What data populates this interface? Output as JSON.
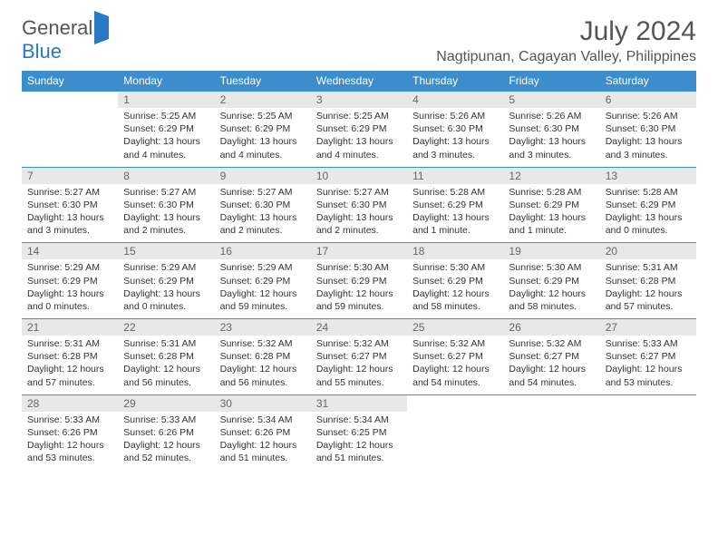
{
  "logo": {
    "word1": "General",
    "word2": "Blue"
  },
  "header": {
    "title": "July 2024",
    "subtitle": "Nagtipunan, Cagayan Valley, Philippines"
  },
  "colors": {
    "brand_blue": "#3c8dcc",
    "logo_blue": "#2878c8",
    "daynum_bg": "#e8e8e8",
    "text_gray": "#555"
  },
  "dayNames": [
    "Sunday",
    "Monday",
    "Tuesday",
    "Wednesday",
    "Thursday",
    "Friday",
    "Saturday"
  ],
  "firstWeekday": 1,
  "daysInMonth": 31,
  "days": {
    "1": {
      "sunrise": "5:25 AM",
      "sunset": "6:29 PM",
      "daylight": "13 hours and 4 minutes."
    },
    "2": {
      "sunrise": "5:25 AM",
      "sunset": "6:29 PM",
      "daylight": "13 hours and 4 minutes."
    },
    "3": {
      "sunrise": "5:25 AM",
      "sunset": "6:29 PM",
      "daylight": "13 hours and 4 minutes."
    },
    "4": {
      "sunrise": "5:26 AM",
      "sunset": "6:30 PM",
      "daylight": "13 hours and 3 minutes."
    },
    "5": {
      "sunrise": "5:26 AM",
      "sunset": "6:30 PM",
      "daylight": "13 hours and 3 minutes."
    },
    "6": {
      "sunrise": "5:26 AM",
      "sunset": "6:30 PM",
      "daylight": "13 hours and 3 minutes."
    },
    "7": {
      "sunrise": "5:27 AM",
      "sunset": "6:30 PM",
      "daylight": "13 hours and 3 minutes."
    },
    "8": {
      "sunrise": "5:27 AM",
      "sunset": "6:30 PM",
      "daylight": "13 hours and 2 minutes."
    },
    "9": {
      "sunrise": "5:27 AM",
      "sunset": "6:30 PM",
      "daylight": "13 hours and 2 minutes."
    },
    "10": {
      "sunrise": "5:27 AM",
      "sunset": "6:30 PM",
      "daylight": "13 hours and 2 minutes."
    },
    "11": {
      "sunrise": "5:28 AM",
      "sunset": "6:29 PM",
      "daylight": "13 hours and 1 minute."
    },
    "12": {
      "sunrise": "5:28 AM",
      "sunset": "6:29 PM",
      "daylight": "13 hours and 1 minute."
    },
    "13": {
      "sunrise": "5:28 AM",
      "sunset": "6:29 PM",
      "daylight": "13 hours and 0 minutes."
    },
    "14": {
      "sunrise": "5:29 AM",
      "sunset": "6:29 PM",
      "daylight": "13 hours and 0 minutes."
    },
    "15": {
      "sunrise": "5:29 AM",
      "sunset": "6:29 PM",
      "daylight": "13 hours and 0 minutes."
    },
    "16": {
      "sunrise": "5:29 AM",
      "sunset": "6:29 PM",
      "daylight": "12 hours and 59 minutes."
    },
    "17": {
      "sunrise": "5:30 AM",
      "sunset": "6:29 PM",
      "daylight": "12 hours and 59 minutes."
    },
    "18": {
      "sunrise": "5:30 AM",
      "sunset": "6:29 PM",
      "daylight": "12 hours and 58 minutes."
    },
    "19": {
      "sunrise": "5:30 AM",
      "sunset": "6:29 PM",
      "daylight": "12 hours and 58 minutes."
    },
    "20": {
      "sunrise": "5:31 AM",
      "sunset": "6:28 PM",
      "daylight": "12 hours and 57 minutes."
    },
    "21": {
      "sunrise": "5:31 AM",
      "sunset": "6:28 PM",
      "daylight": "12 hours and 57 minutes."
    },
    "22": {
      "sunrise": "5:31 AM",
      "sunset": "6:28 PM",
      "daylight": "12 hours and 56 minutes."
    },
    "23": {
      "sunrise": "5:32 AM",
      "sunset": "6:28 PM",
      "daylight": "12 hours and 56 minutes."
    },
    "24": {
      "sunrise": "5:32 AM",
      "sunset": "6:27 PM",
      "daylight": "12 hours and 55 minutes."
    },
    "25": {
      "sunrise": "5:32 AM",
      "sunset": "6:27 PM",
      "daylight": "12 hours and 54 minutes."
    },
    "26": {
      "sunrise": "5:32 AM",
      "sunset": "6:27 PM",
      "daylight": "12 hours and 54 minutes."
    },
    "27": {
      "sunrise": "5:33 AM",
      "sunset": "6:27 PM",
      "daylight": "12 hours and 53 minutes."
    },
    "28": {
      "sunrise": "5:33 AM",
      "sunset": "6:26 PM",
      "daylight": "12 hours and 53 minutes."
    },
    "29": {
      "sunrise": "5:33 AM",
      "sunset": "6:26 PM",
      "daylight": "12 hours and 52 minutes."
    },
    "30": {
      "sunrise": "5:34 AM",
      "sunset": "6:26 PM",
      "daylight": "12 hours and 51 minutes."
    },
    "31": {
      "sunrise": "5:34 AM",
      "sunset": "6:25 PM",
      "daylight": "12 hours and 51 minutes."
    }
  },
  "labels": {
    "sunrise": "Sunrise:",
    "sunset": "Sunset:",
    "daylight": "Daylight:"
  }
}
